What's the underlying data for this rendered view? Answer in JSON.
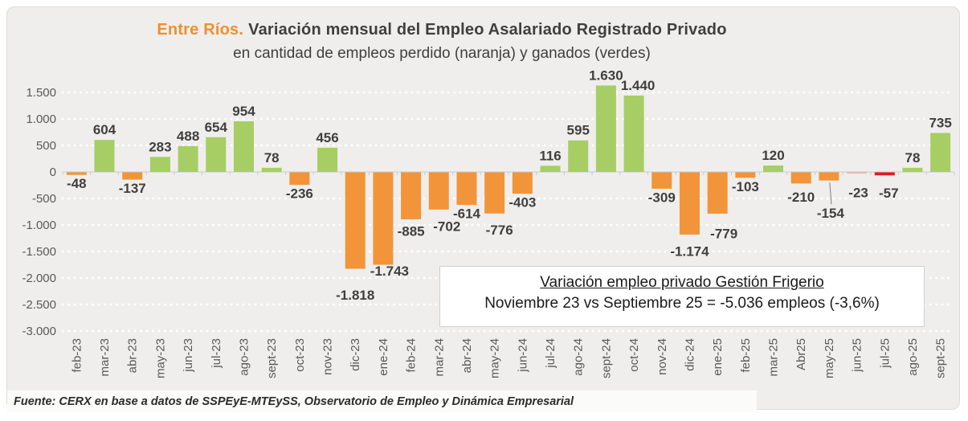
{
  "title": {
    "prefix": "Entre Ríos.",
    "text": "Variación mensual del Empleo Asalariado Registrado Privado"
  },
  "subtitle": "en cantidad de empleos perdido (naranja) y ganados (verdes)",
  "annotation_box": {
    "heading": "Variación empleo privado Gestión Frigerio",
    "body": "Noviembre 23 vs Septiembre 25 = -5.036 empleos (-3,6%)"
  },
  "footer": "Fuente: CERX en base a datos de SSPEyE-MTEySS, Observatorio de Empleo y Dinámica Empresarial",
  "colors": {
    "positive": "#A6CE64",
    "negative": "#F2943A",
    "highlight_negative": "#E0191F",
    "highlight_negative_light": "#F2B3AA",
    "title_accent": "#EE8F2E",
    "panel_background": "#EFEEEC",
    "grid": "#FFFFFF",
    "axis_line": "#C9C9C9",
    "axis_text": "#595959",
    "label_text": "#3F3F3F"
  },
  "chart_data": {
    "type": "bar",
    "categories": [
      "feb-23",
      "mar-23",
      "abr-23",
      "may-23",
      "jun-23",
      "jul-23",
      "ago-23",
      "sept-23",
      "oct-23",
      "nov-23",
      "dic-23",
      "ene-24",
      "feb-24",
      "mar-24",
      "abr-24",
      "may-24",
      "jun-24",
      "jul-24",
      "ago-24",
      "sept-24",
      "oct-24",
      "nov-24",
      "dic-24",
      "ene-25",
      "feb-25",
      "mar-25",
      "Abr25",
      "may-25",
      "jun-25",
      "jul-25",
      "ago-25",
      "sept-25"
    ],
    "values": [
      -48,
      604,
      -137,
      283,
      488,
      654,
      954,
      78,
      -236,
      456,
      -1818,
      -1743,
      -885,
      -702,
      -614,
      -776,
      -403,
      116,
      595,
      1630,
      1440,
      -309,
      -1174,
      -779,
      -103,
      120,
      -210,
      -154,
      -23,
      -57,
      78,
      735
    ],
    "data_labels": [
      "-48",
      "604",
      "-137",
      "283",
      "488",
      "654",
      "954",
      "78",
      "-236",
      "456",
      "-1.818",
      "-1.743",
      "-885",
      "-702",
      "-614",
      "-776",
      "-403",
      "116",
      "595",
      "1.630",
      "1.440",
      "-309",
      "-1.174",
      "-779",
      "-103",
      "120",
      "-210",
      "-154",
      "-23",
      "-57",
      "78",
      "735"
    ],
    "bar_color_keys": [
      "negative",
      "positive",
      "negative",
      "positive",
      "positive",
      "positive",
      "positive",
      "positive",
      "negative",
      "positive",
      "negative",
      "negative",
      "negative",
      "negative",
      "negative",
      "negative",
      "negative",
      "positive",
      "positive",
      "positive",
      "positive",
      "negative",
      "negative",
      "negative",
      "negative",
      "positive",
      "negative",
      "negative",
      "highlight_negative_light",
      "highlight_negative",
      "positive",
      "positive"
    ],
    "ylim": [
      -3000,
      1750
    ],
    "yticks": [
      1500,
      1000,
      500,
      0,
      -500,
      -1000,
      -1500,
      -2000,
      -2500,
      -3000
    ],
    "ytick_labels": [
      "1.500",
      "1.000",
      "500",
      "0",
      "-500",
      "-1.000",
      "-1.500",
      "-2.000",
      "-2.500",
      "-3.000"
    ],
    "grid": "horizontal-white-dotted",
    "legend": "none",
    "bar_label_position": "outside-end"
  }
}
